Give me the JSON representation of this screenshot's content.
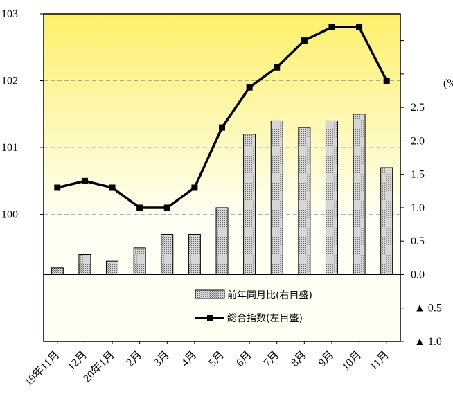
{
  "chart_data": {
    "type": "bar+line",
    "categories": [
      "19年11月",
      "12月",
      "20年1月",
      "2月",
      "3月",
      "4月",
      "5月",
      "6月",
      "7月",
      "8月",
      "9月",
      "10月",
      "11月"
    ],
    "series": [
      {
        "name": "前年同月比(右目盛)",
        "type": "bar",
        "axis": "right",
        "values": [
          0.1,
          0.3,
          0.2,
          0.4,
          0.6,
          0.6,
          1.0,
          2.1,
          2.3,
          2.2,
          2.3,
          2.4,
          1.6
        ]
      },
      {
        "name": "総合指数(左目盛)",
        "type": "line",
        "axis": "left",
        "values": [
          100.4,
          100.5,
          100.4,
          100.1,
          100.1,
          100.4,
          101.3,
          101.9,
          102.2,
          102.6,
          102.8,
          102.8,
          102.0
        ]
      }
    ],
    "left_axis": {
      "ylim": [
        98.1,
        103
      ],
      "tick_values": [
        100,
        101,
        102,
        103
      ],
      "tick_labels": [
        "100",
        "101",
        "102",
        "103"
      ]
    },
    "right_axis": {
      "unit_label": "(%",
      "ylim": [
        -1.0,
        3.9
      ],
      "tick_values": [
        -1.0,
        -0.5,
        0.0,
        0.5,
        1.0,
        1.5,
        2.0,
        2.5
      ],
      "tick_labels": [
        "▲ 1.0",
        "▲ 0.5",
        "0.0",
        "0.5",
        "1.0",
        "1.5",
        "2.0",
        "2.5"
      ]
    },
    "grid": "dashed horizontal",
    "legend_position": "bottom-right inside plot",
    "colors": {
      "plot_top": "#fdf06a",
      "plot_bottom": "#fffff4",
      "bar_fill": "#b8b8b8",
      "line": "#000000",
      "grid": "#aaaaaa"
    }
  }
}
